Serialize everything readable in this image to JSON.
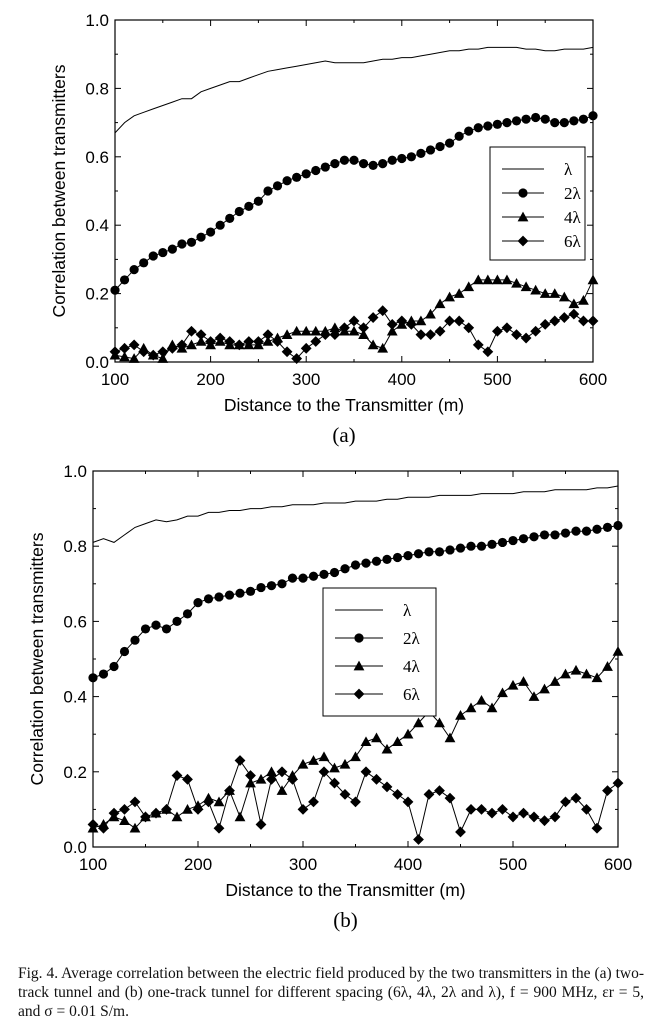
{
  "chart_data": [
    {
      "type": "line",
      "panel_label": "(a)",
      "xlabel": "Distance to the Transmitter (m)",
      "ylabel": "Correlation between transmitters",
      "xlim": [
        100,
        600
      ],
      "ylim": [
        0,
        1.0
      ],
      "xticks": [
        100,
        200,
        300,
        400,
        500,
        600
      ],
      "yticks": [
        0.0,
        0.2,
        0.4,
        0.6,
        0.8,
        1.0
      ],
      "ytick_labels": [
        "0.0",
        "0.2",
        "0.4",
        "0.6",
        "0.8",
        "1.0"
      ],
      "legend_position": "right",
      "x": [
        100,
        110,
        120,
        130,
        140,
        150,
        160,
        170,
        180,
        190,
        200,
        210,
        220,
        230,
        240,
        250,
        260,
        270,
        280,
        290,
        300,
        310,
        320,
        330,
        340,
        350,
        360,
        370,
        380,
        390,
        400,
        410,
        420,
        430,
        440,
        450,
        460,
        470,
        480,
        490,
        500,
        510,
        520,
        530,
        540,
        550,
        560,
        570,
        580,
        590,
        600
      ],
      "series": [
        {
          "name": "λ",
          "marker": "none",
          "values": [
            0.67,
            0.7,
            0.72,
            0.73,
            0.74,
            0.75,
            0.76,
            0.77,
            0.77,
            0.79,
            0.8,
            0.81,
            0.82,
            0.82,
            0.83,
            0.84,
            0.85,
            0.855,
            0.86,
            0.865,
            0.87,
            0.875,
            0.88,
            0.875,
            0.875,
            0.875,
            0.875,
            0.88,
            0.885,
            0.885,
            0.89,
            0.89,
            0.895,
            0.9,
            0.905,
            0.91,
            0.91,
            0.915,
            0.915,
            0.92,
            0.92,
            0.92,
            0.92,
            0.915,
            0.915,
            0.91,
            0.91,
            0.915,
            0.915,
            0.915,
            0.92
          ]
        },
        {
          "name": "2λ",
          "marker": "circle",
          "values": [
            0.21,
            0.24,
            0.27,
            0.29,
            0.31,
            0.32,
            0.33,
            0.345,
            0.35,
            0.365,
            0.38,
            0.4,
            0.42,
            0.44,
            0.455,
            0.47,
            0.5,
            0.515,
            0.53,
            0.54,
            0.55,
            0.56,
            0.57,
            0.58,
            0.59,
            0.59,
            0.58,
            0.575,
            0.58,
            0.59,
            0.595,
            0.6,
            0.61,
            0.62,
            0.63,
            0.64,
            0.66,
            0.675,
            0.685,
            0.69,
            0.695,
            0.7,
            0.705,
            0.71,
            0.715,
            0.71,
            0.7,
            0.7,
            0.705,
            0.71,
            0.72
          ]
        },
        {
          "name": "4λ",
          "marker": "triangle",
          "values": [
            0.02,
            0.015,
            0.01,
            0.04,
            0.02,
            0.01,
            0.05,
            0.04,
            0.05,
            0.06,
            0.05,
            0.06,
            0.05,
            0.05,
            0.05,
            0.05,
            0.06,
            0.07,
            0.08,
            0.09,
            0.09,
            0.09,
            0.09,
            0.1,
            0.09,
            0.09,
            0.08,
            0.05,
            0.04,
            0.09,
            0.11,
            0.12,
            0.12,
            0.14,
            0.17,
            0.19,
            0.2,
            0.22,
            0.24,
            0.24,
            0.24,
            0.24,
            0.23,
            0.22,
            0.21,
            0.2,
            0.2,
            0.19,
            0.17,
            0.18,
            0.24
          ]
        },
        {
          "name": "6λ",
          "marker": "diamond",
          "values": [
            0.03,
            0.04,
            0.05,
            0.03,
            0.02,
            0.03,
            0.04,
            0.05,
            0.09,
            0.08,
            0.06,
            0.07,
            0.06,
            0.05,
            0.06,
            0.06,
            0.08,
            0.06,
            0.03,
            0.01,
            0.04,
            0.06,
            0.08,
            0.08,
            0.1,
            0.12,
            0.1,
            0.13,
            0.15,
            0.11,
            0.12,
            0.11,
            0.08,
            0.08,
            0.09,
            0.12,
            0.12,
            0.1,
            0.05,
            0.03,
            0.09,
            0.1,
            0.08,
            0.07,
            0.09,
            0.11,
            0.12,
            0.13,
            0.14,
            0.12,
            0.12
          ]
        }
      ]
    },
    {
      "type": "line",
      "panel_label": "(b)",
      "xlabel": "Distance to the Transmitter (m)",
      "ylabel": "Correlation between transmitters",
      "xlim": [
        100,
        600
      ],
      "ylim": [
        0,
        1.0
      ],
      "xticks": [
        100,
        200,
        300,
        400,
        500,
        600
      ],
      "yticks": [
        0.0,
        0.2,
        0.4,
        0.6,
        0.8,
        1.0
      ],
      "ytick_labels": [
        "0.0",
        "0.2",
        "0.4",
        "0.6",
        "0.8",
        "1.0"
      ],
      "legend_position": "center-left",
      "x": [
        100,
        110,
        120,
        130,
        140,
        150,
        160,
        170,
        180,
        190,
        200,
        210,
        220,
        230,
        240,
        250,
        260,
        270,
        280,
        290,
        300,
        310,
        320,
        330,
        340,
        350,
        360,
        370,
        380,
        390,
        400,
        410,
        420,
        430,
        440,
        450,
        460,
        470,
        480,
        490,
        500,
        510,
        520,
        530,
        540,
        550,
        560,
        570,
        580,
        590,
        600
      ],
      "series": [
        {
          "name": "λ",
          "marker": "none",
          "values": [
            0.81,
            0.82,
            0.81,
            0.83,
            0.85,
            0.86,
            0.87,
            0.865,
            0.87,
            0.88,
            0.88,
            0.89,
            0.89,
            0.895,
            0.895,
            0.9,
            0.9,
            0.905,
            0.905,
            0.91,
            0.91,
            0.91,
            0.915,
            0.915,
            0.915,
            0.92,
            0.92,
            0.92,
            0.925,
            0.925,
            0.93,
            0.93,
            0.93,
            0.935,
            0.935,
            0.935,
            0.935,
            0.94,
            0.94,
            0.94,
            0.94,
            0.945,
            0.945,
            0.945,
            0.95,
            0.95,
            0.95,
            0.95,
            0.955,
            0.955,
            0.96
          ]
        },
        {
          "name": "2λ",
          "marker": "circle",
          "values": [
            0.45,
            0.46,
            0.48,
            0.52,
            0.55,
            0.58,
            0.59,
            0.58,
            0.6,
            0.62,
            0.65,
            0.66,
            0.665,
            0.67,
            0.675,
            0.68,
            0.69,
            0.695,
            0.7,
            0.715,
            0.715,
            0.72,
            0.725,
            0.73,
            0.74,
            0.75,
            0.755,
            0.76,
            0.765,
            0.77,
            0.775,
            0.78,
            0.785,
            0.785,
            0.79,
            0.795,
            0.8,
            0.8,
            0.805,
            0.81,
            0.815,
            0.82,
            0.825,
            0.83,
            0.83,
            0.835,
            0.84,
            0.84,
            0.845,
            0.85,
            0.855
          ]
        },
        {
          "name": "4λ",
          "marker": "triangle",
          "values": [
            0.05,
            0.06,
            0.08,
            0.07,
            0.05,
            0.08,
            0.09,
            0.1,
            0.08,
            0.1,
            0.11,
            0.13,
            0.12,
            0.15,
            0.08,
            0.17,
            0.18,
            0.2,
            0.15,
            0.19,
            0.22,
            0.23,
            0.24,
            0.21,
            0.22,
            0.24,
            0.28,
            0.29,
            0.26,
            0.28,
            0.3,
            0.33,
            0.36,
            0.33,
            0.29,
            0.35,
            0.37,
            0.39,
            0.37,
            0.41,
            0.43,
            0.44,
            0.4,
            0.42,
            0.44,
            0.46,
            0.47,
            0.46,
            0.45,
            0.48,
            0.52
          ]
        },
        {
          "name": "6λ",
          "marker": "diamond",
          "values": [
            0.06,
            0.05,
            0.09,
            0.1,
            0.12,
            0.08,
            0.09,
            0.1,
            0.19,
            0.18,
            0.1,
            0.12,
            0.05,
            0.15,
            0.23,
            0.19,
            0.06,
            0.18,
            0.2,
            0.18,
            0.1,
            0.12,
            0.2,
            0.17,
            0.14,
            0.12,
            0.2,
            0.18,
            0.16,
            0.14,
            0.12,
            0.02,
            0.14,
            0.15,
            0.13,
            0.04,
            0.1,
            0.1,
            0.09,
            0.1,
            0.08,
            0.09,
            0.08,
            0.07,
            0.08,
            0.12,
            0.13,
            0.1,
            0.05,
            0.15,
            0.17
          ]
        }
      ]
    }
  ],
  "caption": "Fig. 4.   Average correlation between the electric field produced by the two transmitters in the (a) two-track tunnel and (b) one-track tunnel for different spacing (6λ, 4λ, 2λ and λ), f = 900 MHz, εr = 5, and σ = 0.01 S/m."
}
